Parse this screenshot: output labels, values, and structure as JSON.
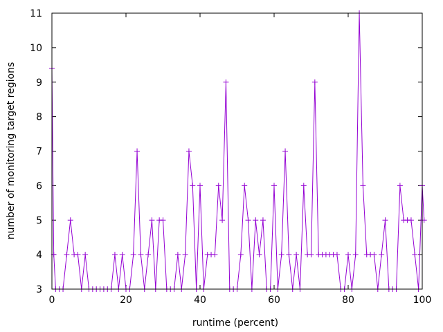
{
  "chart_data": {
    "type": "line",
    "title": "",
    "xlabel": "runtime (percent)",
    "ylabel": "number of monitoring target regions",
    "xlim": [
      0,
      100
    ],
    "ylim": [
      3,
      11
    ],
    "xticks": [
      0,
      20,
      40,
      60,
      80,
      100
    ],
    "yticks": [
      3,
      4,
      5,
      6,
      7,
      8,
      9,
      10,
      11
    ],
    "grid": false,
    "legend": "none",
    "series": [
      {
        "color": "#9400d3",
        "marker": "plus",
        "points": [
          [
            0,
            9.4
          ],
          [
            0.5,
            4
          ],
          [
            1,
            3
          ],
          [
            2,
            3
          ],
          [
            3,
            3
          ],
          [
            4,
            4
          ],
          [
            5,
            5
          ],
          [
            6,
            4
          ],
          [
            7,
            4
          ],
          [
            8,
            3
          ],
          [
            9,
            4
          ],
          [
            10,
            3
          ],
          [
            11,
            3
          ],
          [
            12,
            3
          ],
          [
            13,
            3
          ],
          [
            14,
            3
          ],
          [
            15,
            3
          ],
          [
            16,
            3
          ],
          [
            17,
            4
          ],
          [
            18,
            3
          ],
          [
            19,
            4
          ],
          [
            20,
            3
          ],
          [
            21,
            3
          ],
          [
            22,
            4
          ],
          [
            23,
            7
          ],
          [
            24,
            4
          ],
          [
            25,
            3
          ],
          [
            26,
            4
          ],
          [
            27,
            5
          ],
          [
            28,
            3
          ],
          [
            29,
            5
          ],
          [
            30,
            5
          ],
          [
            31,
            3
          ],
          [
            32,
            3
          ],
          [
            33,
            3
          ],
          [
            34,
            4
          ],
          [
            35,
            3
          ],
          [
            36,
            4
          ],
          [
            37,
            7
          ],
          [
            38,
            6
          ],
          [
            39,
            3
          ],
          [
            40,
            6
          ],
          [
            41,
            3
          ],
          [
            42,
            4
          ],
          [
            43,
            4
          ],
          [
            44,
            4
          ],
          [
            45,
            6
          ],
          [
            46,
            5
          ],
          [
            47,
            9
          ],
          [
            48,
            3
          ],
          [
            49,
            3
          ],
          [
            50,
            3
          ],
          [
            51,
            4
          ],
          [
            52,
            6
          ],
          [
            53,
            5
          ],
          [
            54,
            3
          ],
          [
            55,
            5
          ],
          [
            56,
            4
          ],
          [
            57,
            5
          ],
          [
            58,
            3
          ],
          [
            59,
            3
          ],
          [
            60,
            6
          ],
          [
            61,
            3
          ],
          [
            62,
            4
          ],
          [
            63,
            7
          ],
          [
            64,
            4
          ],
          [
            65,
            3
          ],
          [
            66,
            4
          ],
          [
            67,
            3
          ],
          [
            68,
            6
          ],
          [
            69,
            4
          ],
          [
            70,
            4
          ],
          [
            71,
            9
          ],
          [
            72,
            4
          ],
          [
            73,
            4
          ],
          [
            74,
            4
          ],
          [
            75,
            4
          ],
          [
            76,
            4
          ],
          [
            77,
            4
          ],
          [
            78,
            3
          ],
          [
            79,
            3
          ],
          [
            80,
            4
          ],
          [
            81,
            3
          ],
          [
            82,
            4
          ],
          [
            83,
            11
          ],
          [
            84,
            6
          ],
          [
            85,
            4
          ],
          [
            86,
            4
          ],
          [
            87,
            4
          ],
          [
            88,
            3
          ],
          [
            89,
            4
          ],
          [
            90,
            5
          ],
          [
            91,
            3
          ],
          [
            92,
            3
          ],
          [
            93,
            3
          ],
          [
            94,
            6
          ],
          [
            95,
            5
          ],
          [
            96,
            5
          ],
          [
            97,
            5
          ],
          [
            98,
            4
          ],
          [
            99,
            3
          ],
          [
            100,
            6
          ],
          [
            100.5,
            5
          ]
        ]
      }
    ]
  }
}
